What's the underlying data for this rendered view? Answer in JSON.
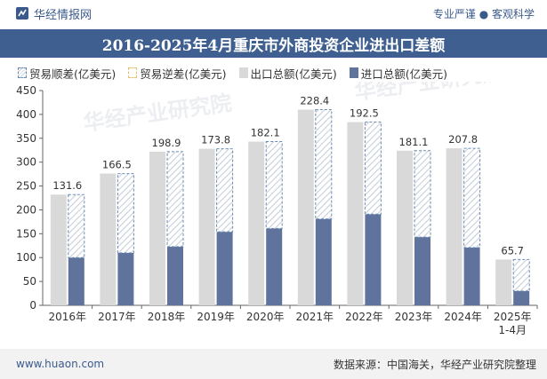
{
  "header": {
    "brand": "华经情报网",
    "tagline": "专业严谨 ● 客观科学"
  },
  "title": "2016-2025年4月重庆市外商投资企业进出口差额",
  "legend": [
    {
      "key": "surplus",
      "label": "贸易顺差(亿美元)"
    },
    {
      "key": "deficit",
      "label": "贸易逆差(亿美元)"
    },
    {
      "key": "export",
      "label": "出口总额(亿美元)"
    },
    {
      "key": "import",
      "label": "进口总额(亿美元)"
    }
  ],
  "footer": {
    "url": "www.huaon.com",
    "source": "数据来源：中国海关，华经产业研究院整理"
  },
  "watermarks": [
    "华经产业研究院",
    "华经产业研究院"
  ],
  "colors": {
    "export": "#d9d9d9",
    "import": "#5f739d",
    "surplus_border": "#6b8db5",
    "title_bg": "#3e5f8f"
  },
  "chart_data": {
    "type": "bar",
    "categories": [
      "2016年",
      "2017年",
      "2018年",
      "2019年",
      "2020年",
      "2021年",
      "2022年",
      "2023年",
      "2024年",
      "2025年\n1-4月"
    ],
    "series": [
      {
        "name": "出口总额(亿美元)",
        "values": [
          232,
          276,
          322,
          328,
          343,
          410,
          384,
          324,
          329,
          96
        ]
      },
      {
        "name": "进口总额(亿美元)",
        "values": [
          100,
          110,
          123,
          154,
          161,
          181,
          191,
          143,
          121,
          30
        ]
      },
      {
        "name": "贸易顺差(亿美元)",
        "values": [
          131.6,
          166.5,
          198.9,
          173.8,
          182.1,
          228.4,
          192.5,
          181.1,
          207.8,
          65.7
        ]
      }
    ],
    "data_labels": [
      "131.6",
      "166.5",
      "198.9",
      "173.8",
      "182.1",
      "228.4",
      "192.5",
      "181.1",
      "207.8",
      "65.7"
    ],
    "yticks": [
      0,
      50,
      100,
      150,
      200,
      250,
      300,
      350,
      400,
      450
    ],
    "ylim": [
      0,
      450
    ],
    "grid": false
  }
}
